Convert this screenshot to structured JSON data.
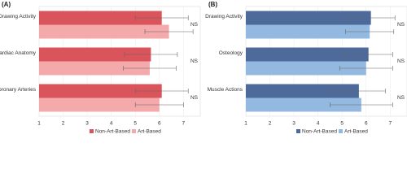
{
  "chart_data": [
    {
      "type": "bar",
      "orientation": "horizontal",
      "title": "(A)",
      "categories": [
        "Drawing Activity",
        "Cardiac Anatomy",
        "Coronary Arteries"
      ],
      "series": [
        {
          "name": "Non-Art-Based",
          "color": "#d9545b",
          "values": [
            6.1,
            5.65,
            6.1
          ],
          "errors": [
            1.1,
            1.1,
            1.1
          ]
        },
        {
          "name": "Art-Based",
          "color": "#f4a9ab",
          "values": [
            6.4,
            5.6,
            6.0
          ],
          "errors": [
            1.0,
            1.1,
            1.0
          ]
        }
      ],
      "annotations": [
        "NS",
        "NS",
        "NS"
      ],
      "xlim": [
        1,
        7.7
      ],
      "xticks": [
        1,
        2,
        3,
        4,
        5,
        6,
        7
      ],
      "grid": true
    },
    {
      "type": "bar",
      "orientation": "horizontal",
      "title": "(B)",
      "categories": [
        "Drawing Activity",
        "Osteology",
        "Muscle Actions"
      ],
      "series": [
        {
          "name": "Non-Art-Based",
          "color": "#4d6a9a",
          "values": [
            6.2,
            6.1,
            5.7
          ],
          "errors": [
            1.0,
            1.0,
            1.1
          ]
        },
        {
          "name": "Art-Based",
          "color": "#93b9e0",
          "values": [
            6.15,
            6.0,
            5.8
          ],
          "errors": [
            1.0,
            1.1,
            1.3
          ]
        }
      ],
      "annotations": [
        "NS",
        "NS",
        "NS"
      ],
      "xlim": [
        1,
        7.7
      ],
      "xticks": [
        1,
        2,
        3,
        4,
        5,
        6,
        7
      ],
      "grid": true
    }
  ]
}
